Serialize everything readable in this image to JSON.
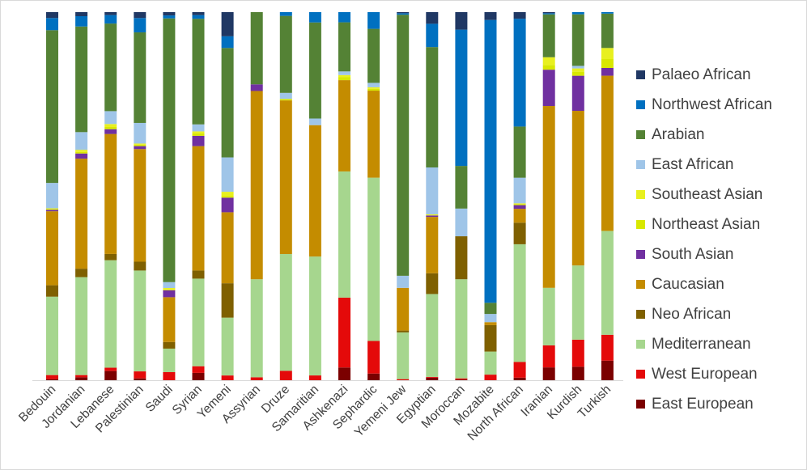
{
  "chart_data": {
    "type": "bar",
    "stacked": true,
    "percent": true,
    "categories": [
      "Bedouin",
      "Jordanian",
      "Lebanese",
      "Palestinian",
      "Saudi",
      "Syrian",
      "Yemeni",
      "Assyrian",
      "Druze",
      "Samaritian",
      "Ashkenazi",
      "Sephardic",
      "Yemeni Jew",
      "Egyptian",
      "Moroccan",
      "Mozabite",
      "North African",
      "Iranian",
      "Kurdish",
      "Turkish"
    ],
    "series": [
      {
        "name": "East European",
        "color": "#7b0000",
        "values": [
          0.3,
          0.8,
          2.5,
          0.5,
          0,
          2.0,
          0,
          0,
          0,
          0,
          3.5,
          1.8,
          0,
          0.7,
          0.2,
          0,
          0.7,
          3.5,
          3.7,
          5.3
        ]
      },
      {
        "name": "West European",
        "color": "#e40a0a",
        "values": [
          1.1,
          0.6,
          0.9,
          1.9,
          2.2,
          1.8,
          1.3,
          0.8,
          2.5,
          1.3,
          19.2,
          8.8,
          0.3,
          0.2,
          0.3,
          1.5,
          4.3,
          6.0,
          7.4,
          7.0
        ]
      },
      {
        "name": "Mediterranean",
        "color": "#a6d68e",
        "values": [
          21.3,
          26.6,
          29.2,
          27.4,
          6.4,
          23.8,
          15.8,
          26.6,
          31.1,
          32.3,
          34.7,
          44.1,
          12.8,
          22.8,
          27.2,
          6.2,
          32.2,
          15.7,
          20.3,
          28.1
        ]
      },
      {
        "name": "Neo African",
        "color": "#7f6000",
        "values": [
          3.1,
          2.3,
          1.7,
          2.4,
          1.8,
          2.2,
          9.4,
          0,
          0,
          0,
          0,
          0,
          0.5,
          5.7,
          11.8,
          7.1,
          5.9,
          0,
          0,
          0
        ]
      },
      {
        "name": "Caucasian",
        "color": "#c48c00",
        "values": [
          20.1,
          29.9,
          32.6,
          30.6,
          12.2,
          33.8,
          19.4,
          51.1,
          40.9,
          35.7,
          25.1,
          23.5,
          11.7,
          15.5,
          0,
          0.8,
          3.8,
          49.6,
          42.3,
          42.0
        ]
      },
      {
        "name": "South Asian",
        "color": "#7030a0",
        "values": [
          0.4,
          1.4,
          1.3,
          0.8,
          1.9,
          2.8,
          4.0,
          1.8,
          0,
          0,
          0,
          0,
          0,
          0.4,
          0,
          0,
          1.0,
          9.9,
          9.6,
          2.1
        ]
      },
      {
        "name": "Northeast Asian",
        "color": "#d8e800",
        "values": [
          0.2,
          0.4,
          0.6,
          0.4,
          0.2,
          0.7,
          0.4,
          0,
          0.4,
          0,
          0.8,
          0.5,
          0,
          0,
          0,
          0,
          0.3,
          1.3,
          1.1,
          2.4
        ]
      },
      {
        "name": "Southeast Asian",
        "color": "#e8f01f",
        "values": [
          0.2,
          0.6,
          0.8,
          0.3,
          0.4,
          0.5,
          1.2,
          0,
          0,
          0,
          0.6,
          0.4,
          0,
          0.3,
          0,
          0,
          0.2,
          2.1,
          0.9,
          3.0
        ]
      },
      {
        "name": "East African",
        "color": "#9fc5e8",
        "values": [
          6.9,
          4.8,
          3.5,
          5.6,
          1.6,
          1.9,
          9.4,
          0,
          1.6,
          1.8,
          1.0,
          1.2,
          3.3,
          12.9,
          7.6,
          2.2,
          7.0,
          0,
          0.7,
          0
        ]
      },
      {
        "name": "Arabian",
        "color": "#548235",
        "values": [
          41.5,
          28.7,
          23.8,
          24.6,
          71.8,
          28.7,
          29.9,
          19.6,
          20.5,
          26.1,
          13.5,
          14.6,
          71.5,
          33.1,
          11.7,
          3.0,
          14.0,
          11.7,
          14.1,
          9.3
        ]
      },
      {
        "name": "Northwest African",
        "color": "#0070c0",
        "values": [
          3.3,
          2.8,
          2.3,
          3.9,
          0.8,
          1.0,
          3.2,
          0,
          1.0,
          2.8,
          2.8,
          4.5,
          0.4,
          6.4,
          37.4,
          76.0,
          29.5,
          0.3,
          0.6,
          0.4
        ]
      },
      {
        "name": "Palaeo African",
        "color": "#203864",
        "values": [
          1.6,
          1.1,
          0.8,
          1.6,
          0.9,
          0.8,
          6.6,
          0,
          0,
          0,
          0,
          0,
          0.3,
          3.2,
          4.8,
          2.1,
          1.8,
          0.3,
          0,
          0
        ]
      }
    ],
    "ylim": [
      0,
      100
    ],
    "grid": false,
    "legend": "right"
  },
  "legend_order": [
    "Palaeo African",
    "Northwest African",
    "Arabian",
    "East African",
    "Southeast Asian",
    "Northeast Asian",
    "South Asian",
    "Caucasian",
    "Neo African",
    "Mediterranean",
    "West European",
    "East European"
  ]
}
